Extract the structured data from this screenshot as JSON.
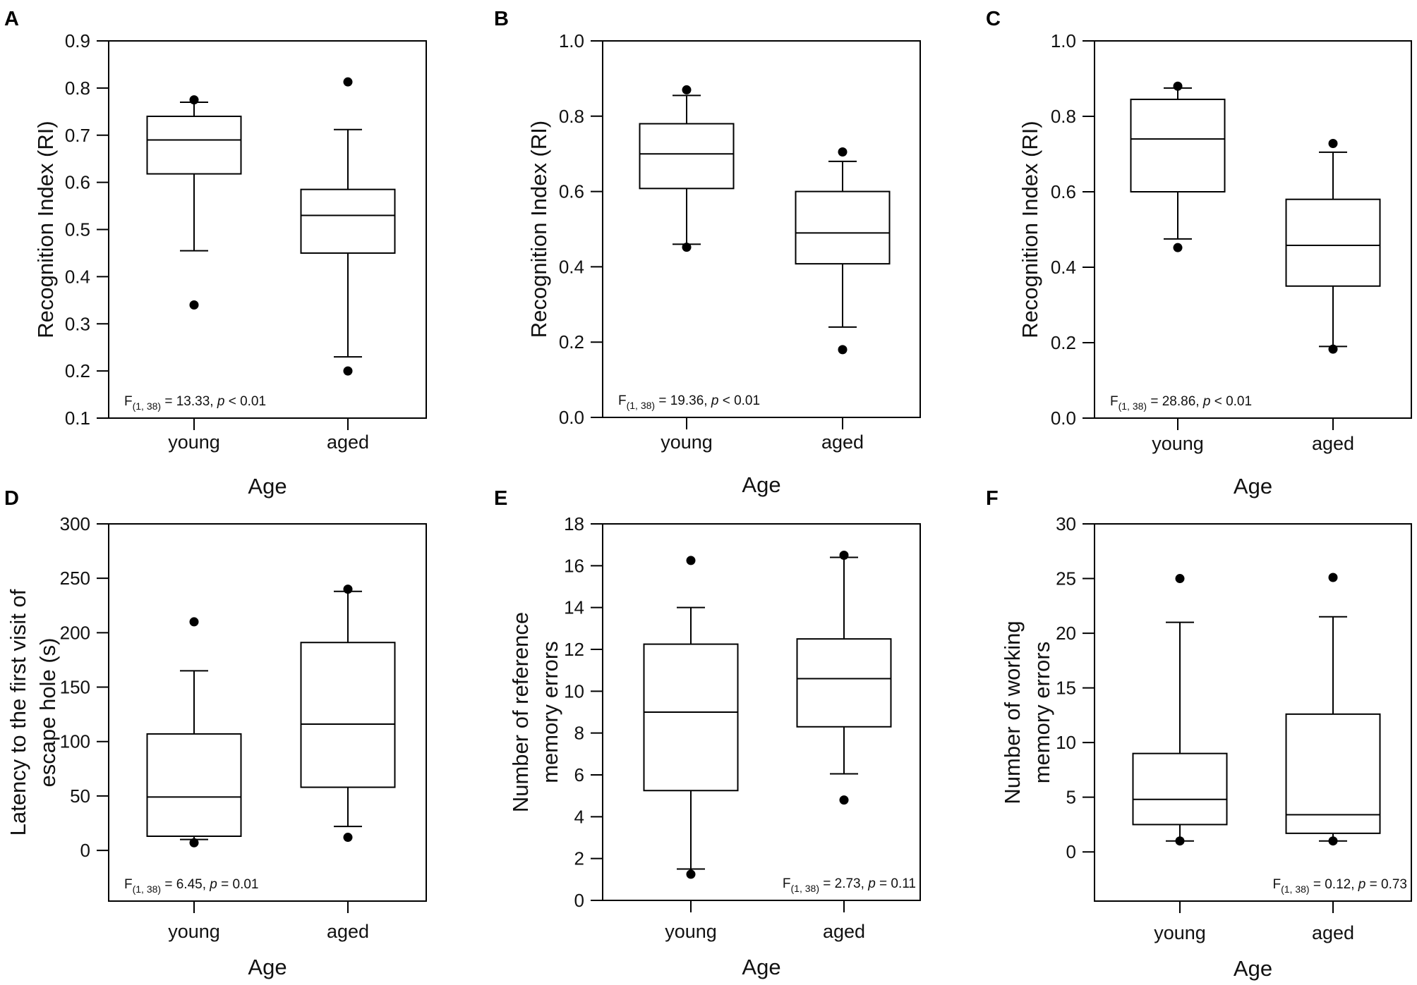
{
  "chart_data": [
    {
      "panel": "A",
      "type": "box",
      "categories": [
        "young",
        "aged"
      ],
      "xlabel": "Age",
      "ylabel": [
        "Recognition Index (RI)"
      ],
      "ylim": [
        0.1,
        0.9
      ],
      "yticks": [
        0.1,
        0.2,
        0.3,
        0.4,
        0.5,
        0.6,
        0.7,
        0.8,
        0.9
      ],
      "tick_decimals": 1,
      "stat": {
        "F": "F",
        "sub": "(1, 38)",
        "text": " = 13.33, ",
        "p": "p",
        "rest": " < 0.01",
        "position": "bottom-left"
      },
      "boxes": [
        {
          "low": 0.455,
          "q1": 0.618,
          "median": 0.69,
          "q3": 0.74,
          "high": 0.77,
          "outliers": [
            0.775,
            0.34
          ]
        },
        {
          "low": 0.23,
          "q1": 0.45,
          "median": 0.53,
          "q3": 0.585,
          "high": 0.712,
          "outliers": [
            0.813,
            0.2
          ]
        }
      ]
    },
    {
      "panel": "B",
      "type": "box",
      "categories": [
        "young",
        "aged"
      ],
      "xlabel": "Age",
      "ylabel": [
        "Recognition Index (RI)"
      ],
      "ylim": [
        0.0,
        1.0
      ],
      "yticks": [
        0.0,
        0.2,
        0.4,
        0.6,
        0.8,
        1.0
      ],
      "tick_decimals": 1,
      "stat": {
        "F": "F",
        "sub": "(1, 38)",
        "text": " = 19.36, ",
        "p": "p",
        "rest": " < 0.01",
        "position": "bottom-left"
      },
      "boxes": [
        {
          "low": 0.46,
          "q1": 0.608,
          "median": 0.7,
          "q3": 0.78,
          "high": 0.855,
          "outliers": [
            0.87,
            0.452
          ]
        },
        {
          "low": 0.24,
          "q1": 0.408,
          "median": 0.49,
          "q3": 0.6,
          "high": 0.68,
          "outliers": [
            0.705,
            0.18
          ]
        }
      ]
    },
    {
      "panel": "C",
      "type": "box",
      "categories": [
        "young",
        "aged"
      ],
      "xlabel": "Age",
      "ylabel": [
        "Recognition Index (RI)"
      ],
      "ylim": [
        0.0,
        1.0
      ],
      "yticks": [
        0.0,
        0.2,
        0.4,
        0.6,
        0.8,
        1.0
      ],
      "tick_decimals": 1,
      "stat": {
        "F": "F",
        "sub": "(1, 38)",
        "text": " = 28.86, ",
        "p": "p",
        "rest": " < 0.01",
        "position": "bottom-left"
      },
      "boxes": [
        {
          "low": 0.475,
          "q1": 0.6,
          "median": 0.74,
          "q3": 0.845,
          "high": 0.875,
          "outliers": [
            0.88,
            0.452
          ]
        },
        {
          "low": 0.19,
          "q1": 0.35,
          "median": 0.458,
          "q3": 0.58,
          "high": 0.705,
          "outliers": [
            0.728,
            0.183
          ]
        }
      ]
    },
    {
      "panel": "D",
      "type": "box",
      "categories": [
        "young",
        "aged"
      ],
      "xlabel": "Age",
      "ylabel": [
        "Latency to the first visit of",
        "escape hole (s)"
      ],
      "ylim": [
        -46.6,
        300
      ],
      "yticks": [
        0,
        50,
        100,
        150,
        200,
        250,
        300
      ],
      "tick_decimals": 0,
      "stat": {
        "F": "F",
        "sub": "(1, 38)",
        "text": " = 6.45, ",
        "p": "p",
        "rest": " = 0.01",
        "position": "bottom-left"
      },
      "boxes": [
        {
          "low": 10,
          "q1": 13,
          "median": 49,
          "q3": 107,
          "high": 165,
          "outliers": [
            210,
            7
          ]
        },
        {
          "low": 22,
          "q1": 58,
          "median": 116,
          "q3": 191,
          "high": 238,
          "outliers": [
            240,
            12
          ]
        }
      ]
    },
    {
      "panel": "E",
      "type": "box",
      "categories": [
        "young",
        "aged"
      ],
      "xlabel": "Age",
      "ylabel": [
        "Number of reference",
        "memory errors"
      ],
      "ylim": [
        0,
        18
      ],
      "yticks": [
        0,
        2,
        4,
        6,
        8,
        10,
        12,
        14,
        16,
        18
      ],
      "tick_decimals": 0,
      "stat": {
        "F": "F",
        "sub": "(1, 38)",
        "text": " = 2.73, ",
        "p": "p",
        "rest": " = 0.11",
        "position": "bottom-right"
      },
      "boxes": [
        {
          "low": 1.5,
          "q1": 5.25,
          "median": 9.0,
          "q3": 12.25,
          "high": 14,
          "outliers": [
            16.25,
            1.25
          ]
        },
        {
          "low": 6.05,
          "q1": 8.3,
          "median": 10.6,
          "q3": 12.5,
          "high": 16.4,
          "outliers": [
            16.5,
            4.8
          ]
        }
      ]
    },
    {
      "panel": "F",
      "type": "box",
      "categories": [
        "young",
        "aged"
      ],
      "xlabel": "Age",
      "ylabel": [
        "Number of working",
        "memory errors"
      ],
      "ylim": [
        -4.5,
        30
      ],
      "yticks": [
        0,
        5,
        10,
        15,
        20,
        25,
        30
      ],
      "tick_decimals": 0,
      "stat": {
        "F": "F",
        "sub": "(1, 38)",
        "text": " = 0.12, ",
        "p": "p",
        "rest": " = 0.73",
        "position": "bottom-right"
      },
      "boxes": [
        {
          "low": 1,
          "q1": 2.5,
          "median": 4.8,
          "q3": 9,
          "high": 21,
          "outliers": [
            25,
            1
          ]
        },
        {
          "low": 1,
          "q1": 1.7,
          "median": 3.4,
          "q3": 12.6,
          "high": 21.5,
          "outliers": [
            25.1,
            1
          ]
        }
      ]
    }
  ]
}
